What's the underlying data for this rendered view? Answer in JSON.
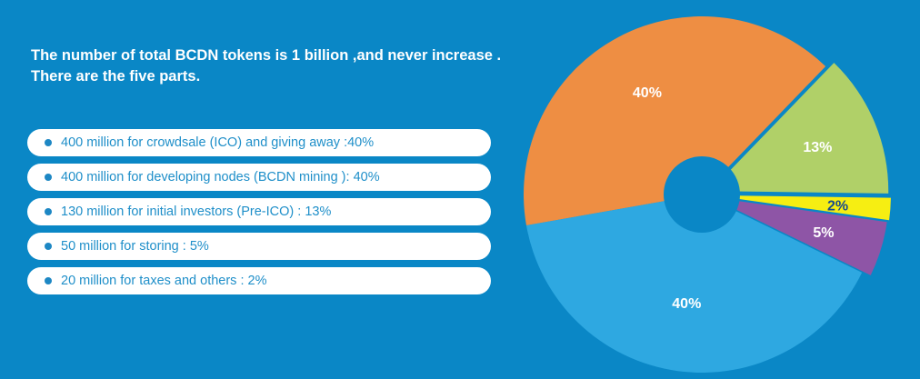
{
  "heading": {
    "line1": "The number of total BCDN tokens is 1 billion ,and never increase .",
    "line2": "There are the five parts."
  },
  "legend": [
    {
      "text": "400 million for crowdsale (ICO) and giving away :40%"
    },
    {
      "text": "400 million for developing nodes (BCDN mining ): 40%"
    },
    {
      "text": "130 million for initial investors (Pre-ICO) : 13%"
    },
    {
      "text": "50 million for storing : 5%"
    },
    {
      "text": "20 million for taxes and others : 2%"
    }
  ],
  "chart_data": {
    "type": "pie",
    "title": "",
    "slices": [
      {
        "label": "40%",
        "value": 40,
        "color": "#ee8e43",
        "label_color": "#ffffff"
      },
      {
        "label": "13%",
        "value": 13,
        "color": "#b0d068",
        "label_color": "#ffffff"
      },
      {
        "label": "2%",
        "value": 2,
        "color": "#f6ee12",
        "label_color": "#1a4b8c"
      },
      {
        "label": "5%",
        "value": 5,
        "color": "#8e55a6",
        "label_color": "#ffffff"
      },
      {
        "label": "40%",
        "value": 40,
        "color": "#2ea8e1",
        "label_color": "#ffffff"
      }
    ],
    "center_hole_color": "#0a87c6",
    "background_color": "#0a87c6"
  }
}
